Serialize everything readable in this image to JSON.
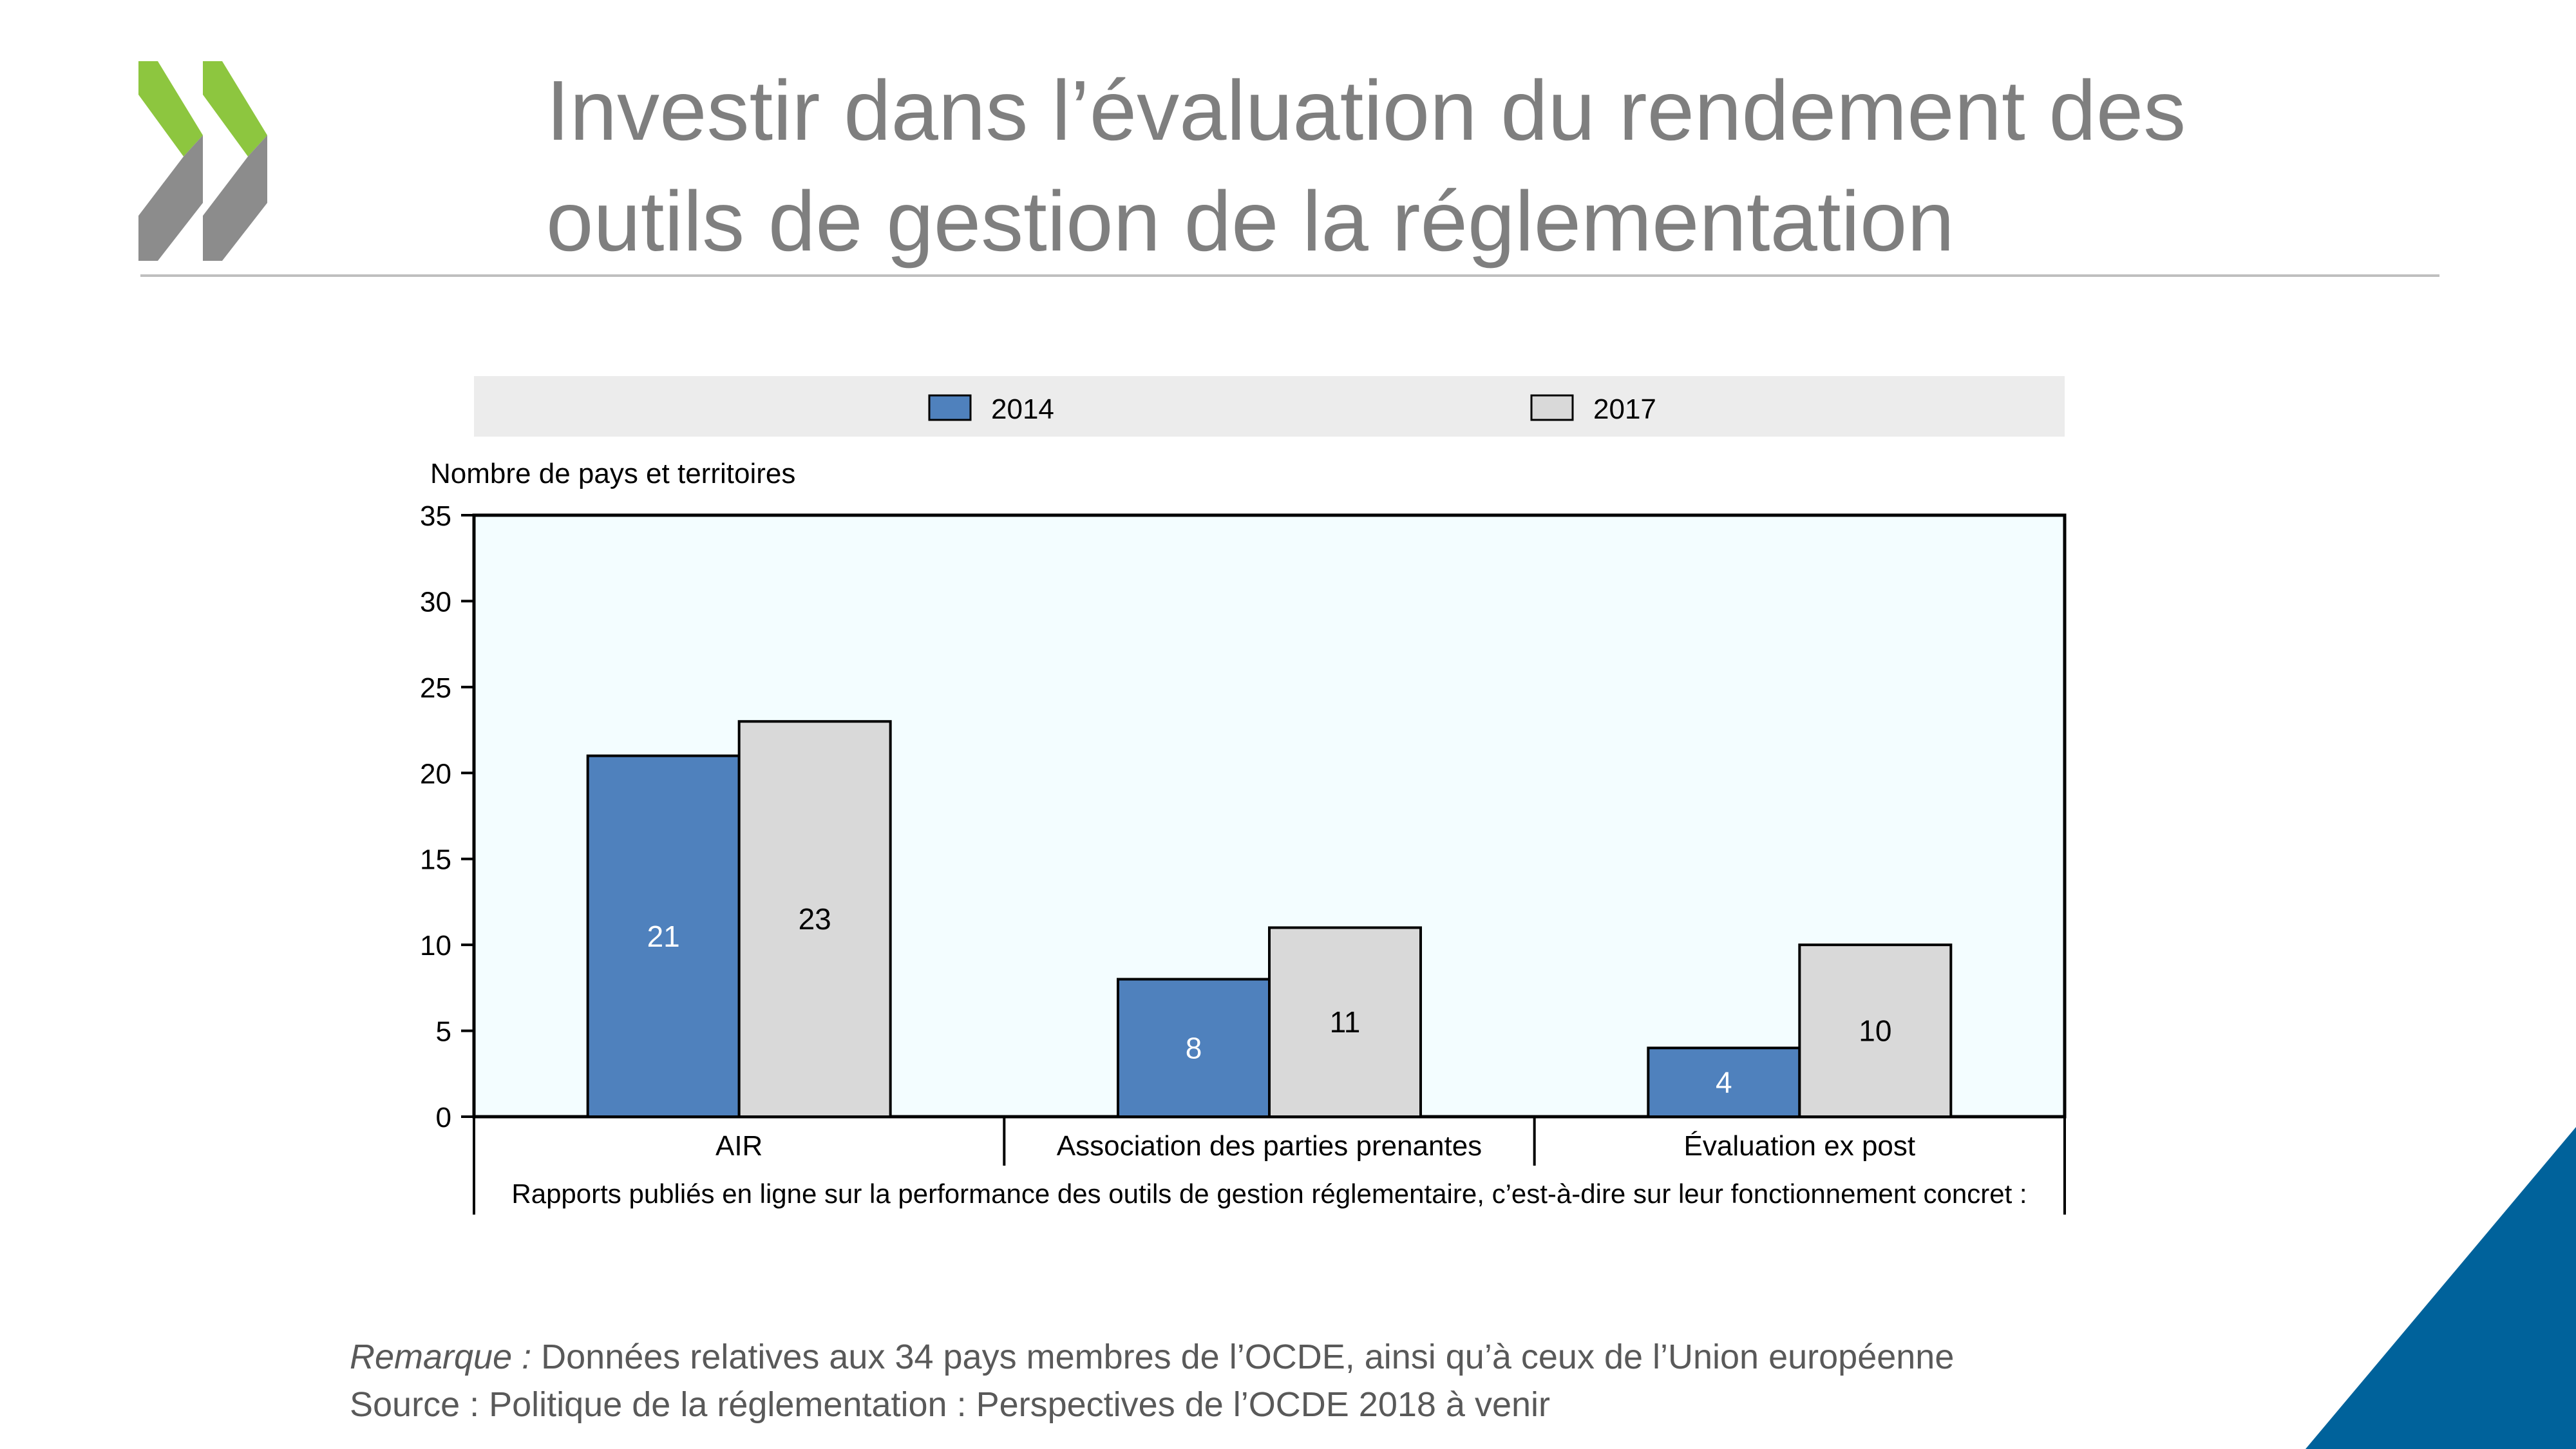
{
  "slide": {
    "title_line1": "Investir dans l’évaluation du rendement des",
    "title_line2": "outils de gestion de la réglementation",
    "note_label": "Remarque :",
    "note_text": " Données relatives aux 34 pays membres de l’OCDE, ainsi qu’à ceux de l’Union européenne",
    "source_text": "Source : Politique de la réglementation : Perspectives de l’OCDE 2018 à venir"
  },
  "colors": {
    "series_2014": "#4f81bd",
    "series_2017": "#d9d9d9",
    "plot_background": "#f3fdff",
    "logo_green": "#8dc63f",
    "logo_gray": "#8c8c8c",
    "accent_blue": "#00629b"
  },
  "chart_data": {
    "type": "bar",
    "ylabel": "Nombre de pays et territoires",
    "xlabel": "Rapports publiés en ligne sur la performance des outils de gestion réglementaire, c’est-à-dire sur leur fonctionnement concret :",
    "categories": [
      "AIR",
      "Association des parties prenantes",
      "Évaluation ex post"
    ],
    "series": [
      {
        "name": "2014",
        "values": [
          21,
          8,
          4
        ]
      },
      {
        "name": "2017",
        "values": [
          23,
          11,
          10
        ]
      }
    ],
    "ylim": [
      0,
      35
    ],
    "yticks": [
      0,
      5,
      10,
      15,
      20,
      25,
      30,
      35
    ],
    "grid": false,
    "legend": "top",
    "data_labels": true
  }
}
